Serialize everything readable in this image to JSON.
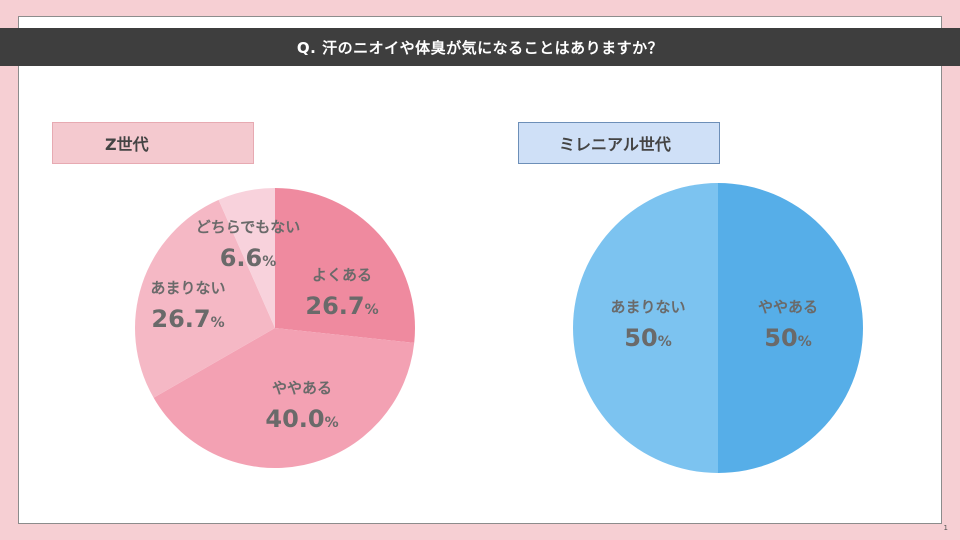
{
  "page": {
    "title": "Q. 汗のニオイや体臭が気になることはありますか？",
    "page_number": "1"
  },
  "colors": {
    "background": "#f6cfd3",
    "title_bar": "#3e3e3e",
    "label_z_bg": "#f4c9cf",
    "label_m_bg": "#cfe0f7"
  },
  "chart_data": [
    {
      "type": "pie",
      "title": "Z世代",
      "slices": [
        {
          "label": "よくある",
          "value": 26.7,
          "display": "26.7",
          "color": "#ef8a9f"
        },
        {
          "label": "ややある",
          "value": 40.0,
          "display": "40.0",
          "color": "#f3a1b3"
        },
        {
          "label": "あまりない",
          "value": 26.7,
          "display": "26.7",
          "color": "#f5b8c5"
        },
        {
          "label": "どちらでもない",
          "value": 6.6,
          "display": "6.6",
          "color": "#f8d2dc"
        }
      ],
      "unit": "%"
    },
    {
      "type": "pie",
      "title": "ミレニアル世代",
      "slices": [
        {
          "label": "ややある",
          "value": 50,
          "display": "50",
          "color": "#56aee8"
        },
        {
          "label": "あまりない",
          "value": 50,
          "display": "50",
          "color": "#7cc3f0"
        }
      ],
      "unit": "%"
    }
  ]
}
